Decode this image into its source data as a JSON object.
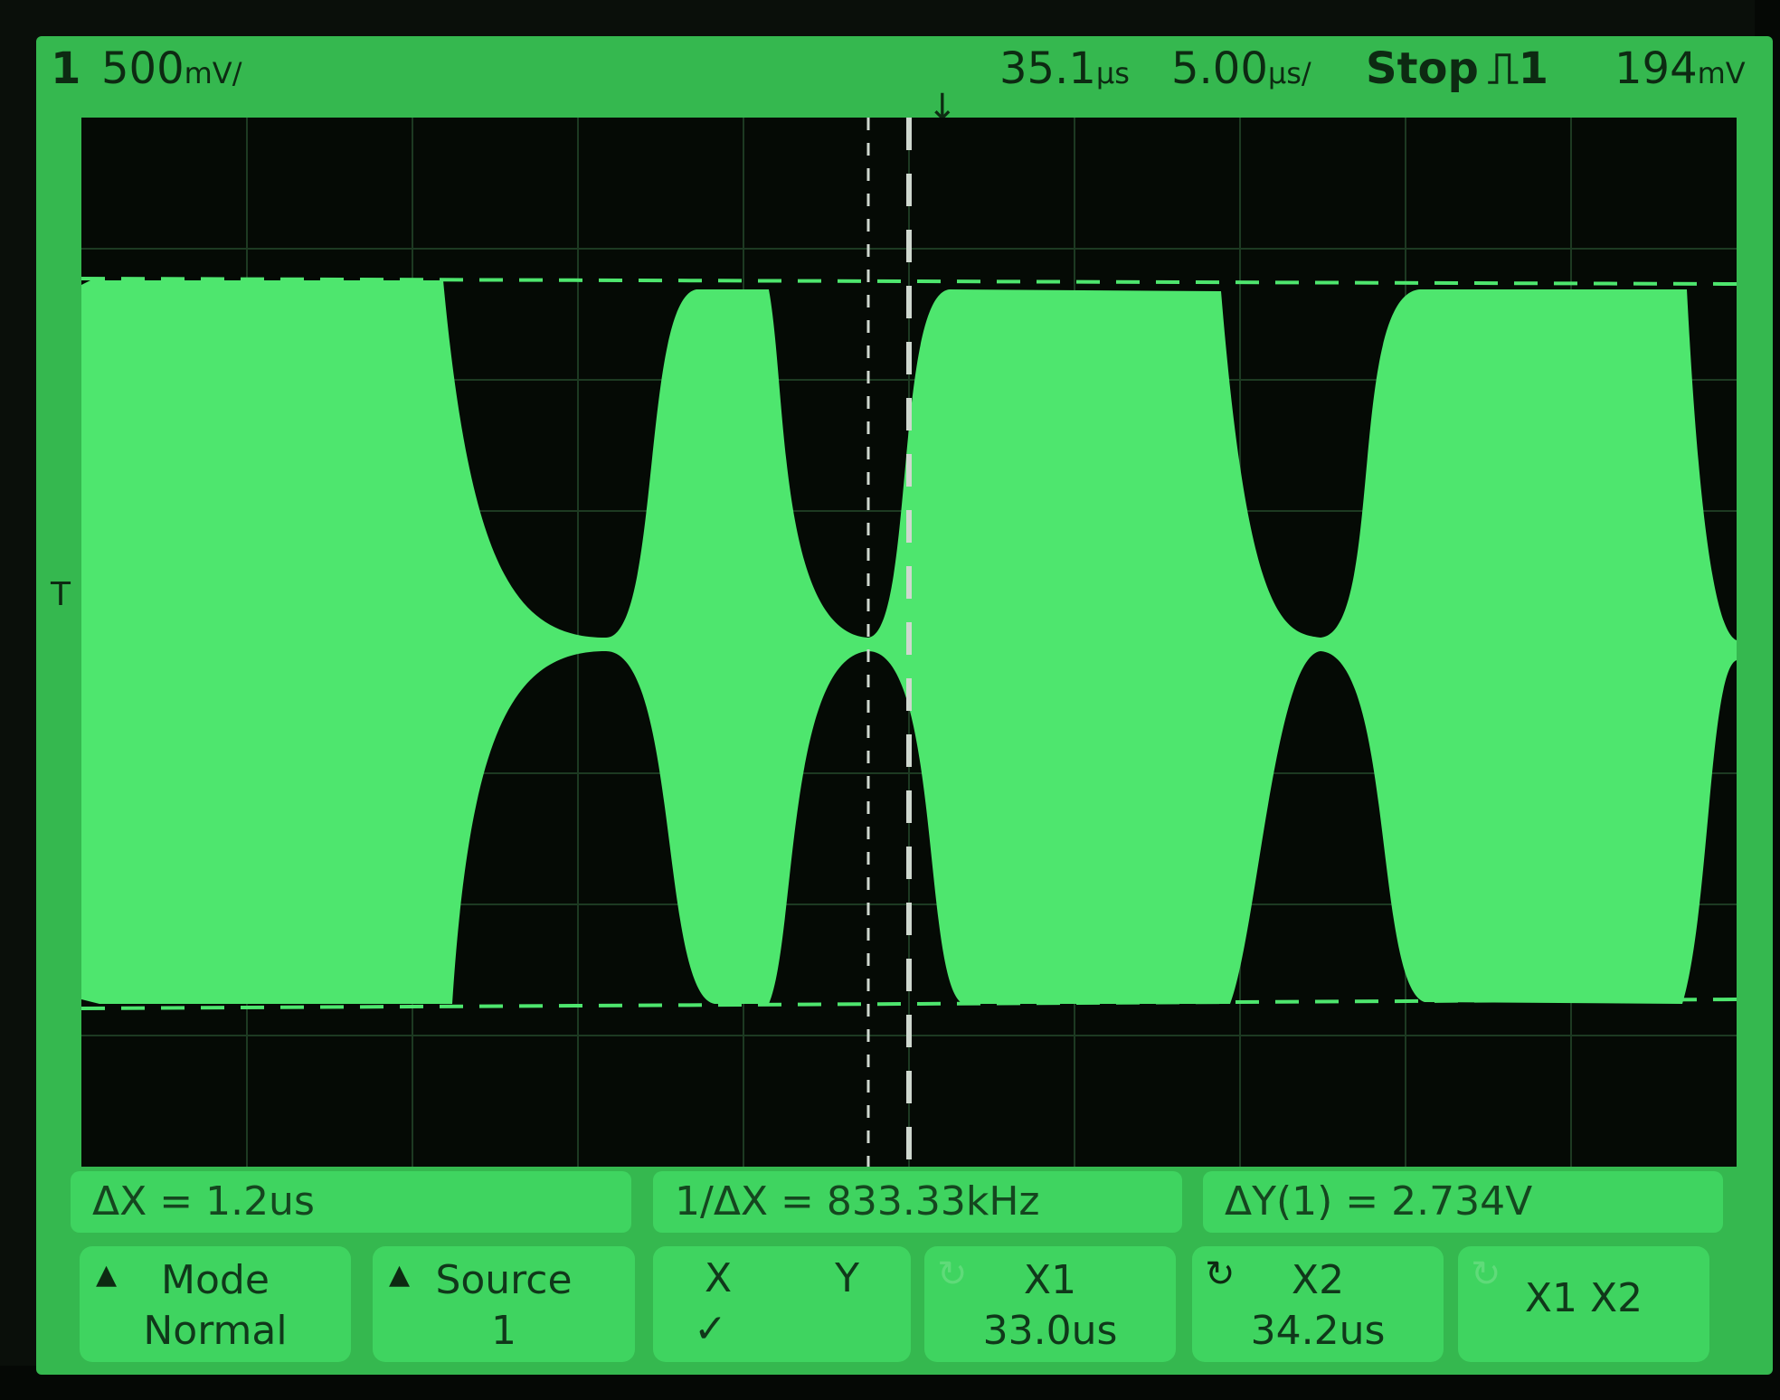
{
  "status": {
    "channel": "1",
    "volts_per_div": "500",
    "volts_per_div_unit": "mV/",
    "time_delay": "35.1",
    "time_delay_unit": "µs",
    "time_per_div": "5.00",
    "time_per_div_unit": "µs/",
    "run_state": "Stop",
    "trigger_symbol": "⎍",
    "trigger_source": "1",
    "trigger_level": "194",
    "trigger_level_unit": "mV"
  },
  "icons": {
    "trigger_marker": "trigger-position-icon",
    "channel_marker": "channel-1-ground-icon",
    "triangle": "softkey-triangle-icon",
    "knob": "entry-knob-icon"
  },
  "channel_marker_label": "T 1",
  "measurements": {
    "dx": "ΔX  =  1.2us",
    "inv_dx": "1/ΔX  =  833.33kHz",
    "dy": "ΔY(1)  =  2.734V"
  },
  "softkeys": {
    "mode_label": "Mode",
    "mode_value": "Normal",
    "source_label": "Source",
    "source_value": "1",
    "x_label": "X",
    "y_label": "Y",
    "xy_check": "✓",
    "x1_label": "X1",
    "x1_value": "33.0us",
    "x2_label": "X2",
    "x2_value": "34.2us",
    "x1x2_label": "X1  X2"
  },
  "colors": {
    "screen_green": "#35b84f",
    "trace_green": "#4ee66e",
    "grid_black": "#050a05",
    "text_dark": "#0d2a12"
  }
}
